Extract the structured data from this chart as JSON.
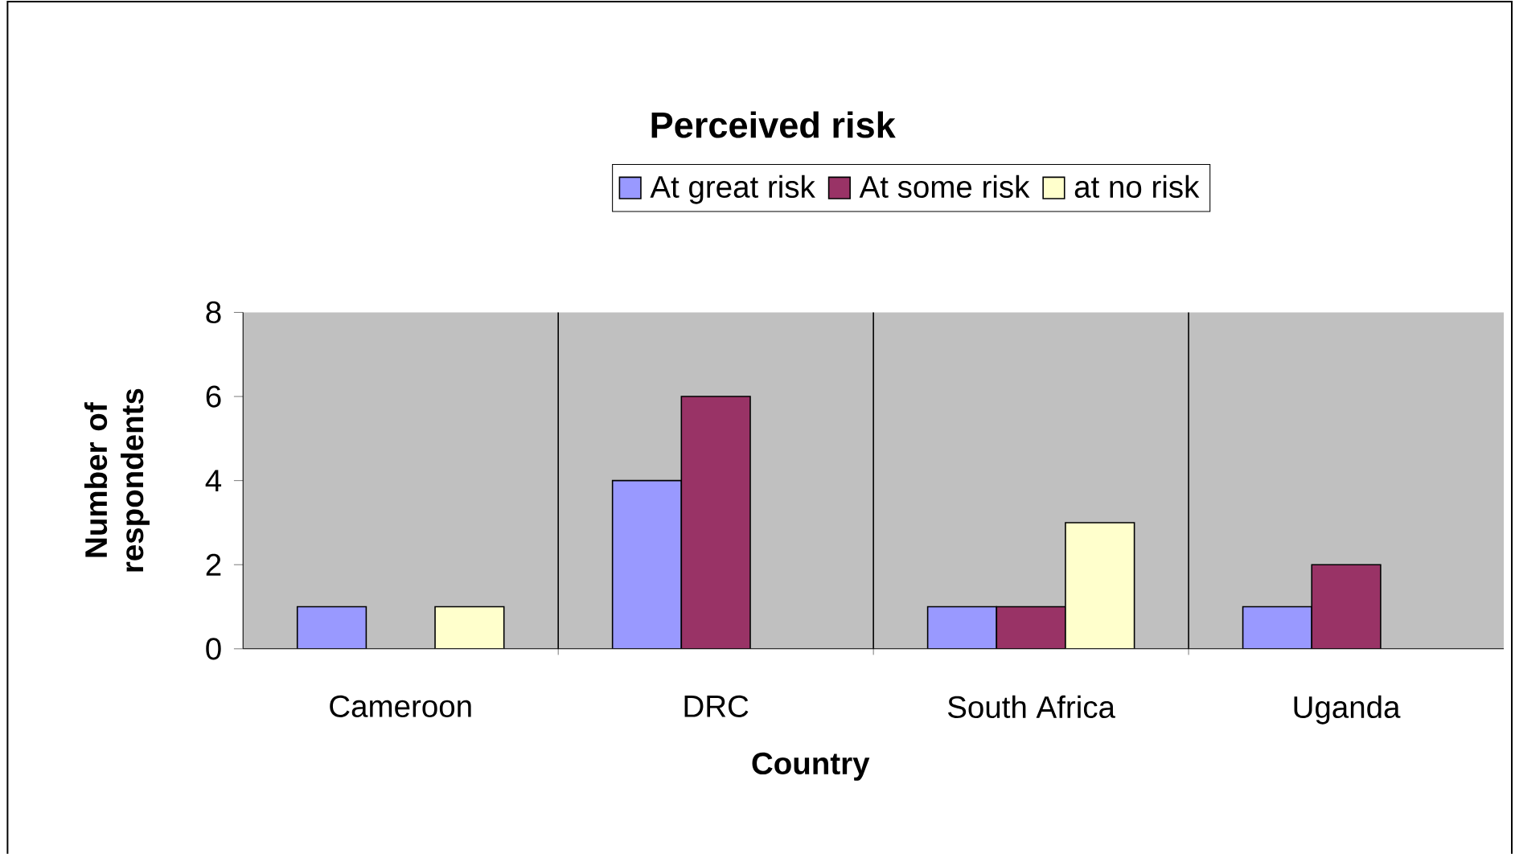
{
  "chart_data": {
    "type": "bar",
    "title": "Perceived risk",
    "xlabel": "Country",
    "ylabel": "Number of respondents",
    "categories": [
      "Cameroon",
      "DRC",
      "South Africa",
      "Uganda"
    ],
    "series": [
      {
        "name": "At great risk",
        "color": "#9999ff",
        "values": [
          1,
          4,
          1,
          1
        ]
      },
      {
        "name": "At some risk",
        "color": "#993366",
        "values": [
          null,
          6,
          1,
          2
        ]
      },
      {
        "name": "at no risk",
        "color": "#ffffcc",
        "values": [
          1,
          null,
          3,
          null
        ]
      }
    ],
    "ylim": [
      0,
      8
    ],
    "yticks": [
      0,
      2,
      4,
      6,
      8
    ],
    "grid": "x",
    "legend": "top"
  }
}
